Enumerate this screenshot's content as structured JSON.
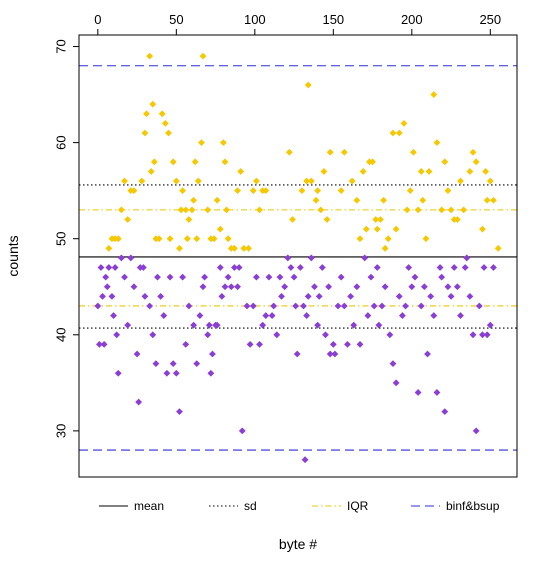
{
  "chart_data": {
    "type": "scatter",
    "title": "",
    "xlabel": "byte #",
    "ylabel": "counts",
    "xlim": [
      -12,
      267
    ],
    "ylim": [
      25.2,
      71.2
    ],
    "x_ticks": [
      0,
      50,
      100,
      150,
      200,
      250
    ],
    "x_tick_labels": [
      "0",
      "50",
      "100",
      "150",
      "200",
      "250"
    ],
    "x_axis_position": "top",
    "y_ticks": [
      30,
      40,
      50,
      60,
      70
    ],
    "y_tick_labels": [
      "30",
      "40",
      "50",
      "60",
      "70"
    ],
    "grid": false,
    "colors": {
      "above_mean": "#F5C800",
      "below_mean": "#8A3ED6",
      "mean": "#000000",
      "sd": "#000000",
      "iqr": "#E8C800",
      "bounds": "#2E2ED6"
    },
    "reference_lines": [
      {
        "name": "binf&bsup",
        "y": 68.0,
        "style": "dashed",
        "color": "#2E2ED6"
      },
      {
        "name": "sd",
        "y": 55.6,
        "style": "dotted",
        "color": "#000000"
      },
      {
        "name": "IQR",
        "y": 53.0,
        "style": "dashdot",
        "color": "#E8C800"
      },
      {
        "name": "mean",
        "y": 48.1,
        "style": "solid",
        "color": "#000000"
      },
      {
        "name": "IQR",
        "y": 43.0,
        "style": "dashdot",
        "color": "#E8C800"
      },
      {
        "name": "sd",
        "y": 40.7,
        "style": "dotted",
        "color": "#000000"
      },
      {
        "name": "binf&bsup",
        "y": 28.0,
        "style": "dashed",
        "color": "#2E2ED6"
      }
    ],
    "series": [
      {
        "color_key": "above_mean",
        "points": [
          [
            7,
            49
          ],
          [
            9,
            50
          ],
          [
            11,
            50
          ],
          [
            13,
            50
          ],
          [
            15,
            53
          ],
          [
            17,
            56
          ],
          [
            19,
            52
          ],
          [
            21,
            55
          ],
          [
            23,
            55
          ],
          [
            28,
            56
          ],
          [
            30,
            61
          ],
          [
            31,
            63
          ],
          [
            33,
            69
          ],
          [
            34,
            57
          ],
          [
            35,
            64
          ],
          [
            36,
            58
          ],
          [
            37,
            50
          ],
          [
            39,
            50
          ],
          [
            41,
            63
          ],
          [
            43,
            62
          ],
          [
            45,
            61
          ],
          [
            46,
            50
          ],
          [
            48,
            58
          ],
          [
            50,
            56
          ],
          [
            52,
            49
          ],
          [
            53,
            53
          ],
          [
            54,
            55
          ],
          [
            56,
            53
          ],
          [
            57,
            50
          ],
          [
            58,
            52
          ],
          [
            60,
            53
          ],
          [
            61,
            54
          ],
          [
            62,
            58
          ],
          [
            63,
            50
          ],
          [
            64,
            56
          ],
          [
            66,
            60
          ],
          [
            67,
            69
          ],
          [
            70,
            53
          ],
          [
            72,
            50
          ],
          [
            74,
            50
          ],
          [
            76,
            54
          ],
          [
            78,
            51
          ],
          [
            80,
            60
          ],
          [
            81,
            58
          ],
          [
            82,
            53
          ],
          [
            83,
            50
          ],
          [
            85,
            49
          ],
          [
            87,
            49
          ],
          [
            89,
            55
          ],
          [
            91,
            57
          ],
          [
            93,
            49
          ],
          [
            96,
            49
          ],
          [
            99,
            55
          ],
          [
            101,
            56
          ],
          [
            103,
            53
          ],
          [
            105,
            55
          ],
          [
            107,
            55
          ],
          [
            122,
            59
          ],
          [
            124,
            52
          ],
          [
            130,
            55
          ],
          [
            133,
            56
          ],
          [
            134,
            66
          ],
          [
            136,
            56
          ],
          [
            139,
            54
          ],
          [
            140,
            55
          ],
          [
            142,
            53
          ],
          [
            144,
            57
          ],
          [
            146,
            52
          ],
          [
            148,
            59
          ],
          [
            155,
            55
          ],
          [
            157,
            59
          ],
          [
            162,
            56
          ],
          [
            165,
            54
          ],
          [
            167,
            50
          ],
          [
            169,
            57
          ],
          [
            171,
            51
          ],
          [
            173,
            58
          ],
          [
            175,
            58
          ],
          [
            177,
            52
          ],
          [
            178,
            51
          ],
          [
            180,
            52
          ],
          [
            182,
            54
          ],
          [
            183,
            49
          ],
          [
            185,
            50
          ],
          [
            188,
            61
          ],
          [
            190,
            51
          ],
          [
            192,
            61
          ],
          [
            195,
            62
          ],
          [
            197,
            53
          ],
          [
            199,
            55
          ],
          [
            201,
            59
          ],
          [
            204,
            53
          ],
          [
            206,
            57
          ],
          [
            207,
            54
          ],
          [
            209,
            50
          ],
          [
            211,
            57
          ],
          [
            214,
            65
          ],
          [
            216,
            60
          ],
          [
            219,
            53
          ],
          [
            221,
            58
          ],
          [
            223,
            55
          ],
          [
            225,
            53
          ],
          [
            227,
            52
          ],
          [
            229,
            52
          ],
          [
            231,
            56
          ],
          [
            233,
            53
          ],
          [
            235,
            48
          ],
          [
            237,
            57
          ],
          [
            239,
            59
          ],
          [
            241,
            58
          ],
          [
            245,
            51
          ],
          [
            247,
            57
          ],
          [
            248,
            54
          ],
          [
            250,
            56
          ],
          [
            252,
            54
          ],
          [
            255,
            49
          ]
        ]
      },
      {
        "color_key": "below_mean",
        "points": [
          [
            0,
            43
          ],
          [
            1,
            39
          ],
          [
            2,
            47
          ],
          [
            3,
            44
          ],
          [
            4,
            39
          ],
          [
            5,
            46
          ],
          [
            6,
            45
          ],
          [
            7,
            47
          ],
          [
            9,
            44
          ],
          [
            10,
            42
          ],
          [
            11,
            47
          ],
          [
            12,
            40
          ],
          [
            13,
            36
          ],
          [
            15,
            48
          ],
          [
            17,
            46
          ],
          [
            19,
            41
          ],
          [
            21,
            48
          ],
          [
            23,
            45
          ],
          [
            25,
            38
          ],
          [
            26,
            33
          ],
          [
            27,
            47
          ],
          [
            29,
            47
          ],
          [
            30,
            44
          ],
          [
            33,
            43
          ],
          [
            35,
            40
          ],
          [
            37,
            37
          ],
          [
            38,
            46
          ],
          [
            40,
            44
          ],
          [
            42,
            42
          ],
          [
            44,
            36
          ],
          [
            46,
            46
          ],
          [
            48,
            37
          ],
          [
            50,
            36
          ],
          [
            52,
            32
          ],
          [
            54,
            46
          ],
          [
            56,
            39
          ],
          [
            58,
            43
          ],
          [
            61,
            41
          ],
          [
            63,
            37
          ],
          [
            65,
            42
          ],
          [
            67,
            45
          ],
          [
            68,
            46
          ],
          [
            70,
            40
          ],
          [
            71,
            41
          ],
          [
            72,
            36
          ],
          [
            73,
            38
          ],
          [
            75,
            41
          ],
          [
            76,
            41
          ],
          [
            78,
            47
          ],
          [
            79,
            44
          ],
          [
            81,
            45
          ],
          [
            83,
            46
          ],
          [
            85,
            45
          ],
          [
            87,
            47
          ],
          [
            89,
            45
          ],
          [
            90,
            47
          ],
          [
            92,
            30
          ],
          [
            95,
            43
          ],
          [
            97,
            39
          ],
          [
            99,
            43
          ],
          [
            101,
            46
          ],
          [
            103,
            39
          ],
          [
            105,
            41
          ],
          [
            107,
            42
          ],
          [
            109,
            46
          ],
          [
            111,
            42
          ],
          [
            112,
            43
          ],
          [
            114,
            40
          ],
          [
            116,
            46
          ],
          [
            117,
            44
          ],
          [
            119,
            45
          ],
          [
            121,
            48
          ],
          [
            123,
            47
          ],
          [
            125,
            46
          ],
          [
            126,
            43
          ],
          [
            127,
            38
          ],
          [
            129,
            47
          ],
          [
            131,
            43
          ],
          [
            132,
            27
          ],
          [
            133,
            42
          ],
          [
            134,
            44
          ],
          [
            136,
            48
          ],
          [
            138,
            45
          ],
          [
            140,
            41
          ],
          [
            141,
            44
          ],
          [
            143,
            47
          ],
          [
            145,
            40
          ],
          [
            147,
            45
          ],
          [
            148,
            38
          ],
          [
            150,
            39
          ],
          [
            151,
            38
          ],
          [
            153,
            43
          ],
          [
            155,
            46
          ],
          [
            157,
            43
          ],
          [
            159,
            39
          ],
          [
            161,
            44
          ],
          [
            163,
            41
          ],
          [
            165,
            45
          ],
          [
            167,
            39
          ],
          [
            170,
            48
          ],
          [
            172,
            42
          ],
          [
            174,
            46
          ],
          [
            176,
            43
          ],
          [
            178,
            47
          ],
          [
            179,
            41
          ],
          [
            181,
            43
          ],
          [
            183,
            45
          ],
          [
            186,
            40
          ],
          [
            188,
            37
          ],
          [
            190,
            35
          ],
          [
            192,
            44
          ],
          [
            194,
            42
          ],
          [
            196,
            43
          ],
          [
            198,
            47
          ],
          [
            200,
            45
          ],
          [
            202,
            46
          ],
          [
            204,
            34
          ],
          [
            206,
            43
          ],
          [
            208,
            45
          ],
          [
            210,
            38
          ],
          [
            212,
            44
          ],
          [
            214,
            42
          ],
          [
            216,
            34
          ],
          [
            218,
            47
          ],
          [
            219,
            46
          ],
          [
            221,
            32
          ],
          [
            223,
            45
          ],
          [
            225,
            44
          ],
          [
            227,
            47
          ],
          [
            229,
            45
          ],
          [
            231,
            42
          ],
          [
            234,
            47
          ],
          [
            235,
            48
          ],
          [
            237,
            44
          ],
          [
            239,
            40
          ],
          [
            241,
            30
          ],
          [
            243,
            43
          ],
          [
            245,
            40
          ],
          [
            246,
            47
          ],
          [
            248,
            40
          ],
          [
            250,
            41
          ],
          [
            252,
            47
          ]
        ]
      }
    ],
    "legend": {
      "placement": "bottom",
      "entries": [
        {
          "label": "mean",
          "style": "solid",
          "color": "#000000"
        },
        {
          "label": "sd",
          "style": "dotted",
          "color": "#000000"
        },
        {
          "label": "IQR",
          "style": "dashdot",
          "color": "#E8C800"
        },
        {
          "label": "binf&bsup",
          "style": "dashed",
          "color": "#2E2ED6"
        }
      ]
    }
  }
}
